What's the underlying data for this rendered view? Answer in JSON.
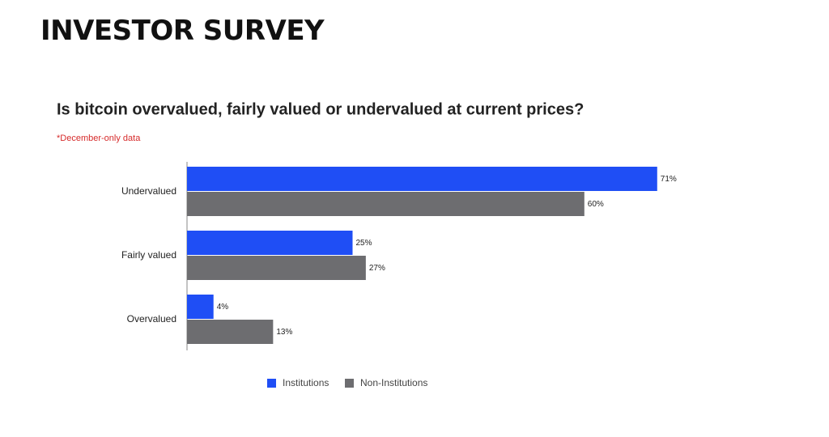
{
  "header": {
    "title": "INVESTOR SURVEY"
  },
  "chart_data": {
    "type": "bar",
    "orientation": "horizontal",
    "title": "Is bitcoin overvalued, fairly valued or undervalued at current prices?",
    "note": "*December-only data",
    "categories": [
      "Undervalued",
      "Fairly valued",
      "Overvalued"
    ],
    "series": [
      {
        "name": "Institutions",
        "color": "#1f4ef5",
        "values": [
          71,
          25,
          4
        ],
        "value_labels": [
          "71%",
          "25%",
          "4%"
        ]
      },
      {
        "name": "Non-Institutions",
        "color": "#6d6d70",
        "values": [
          60,
          27,
          13
        ],
        "value_labels": [
          "60%",
          "27%",
          "13%"
        ]
      }
    ],
    "legend": "bottom"
  }
}
